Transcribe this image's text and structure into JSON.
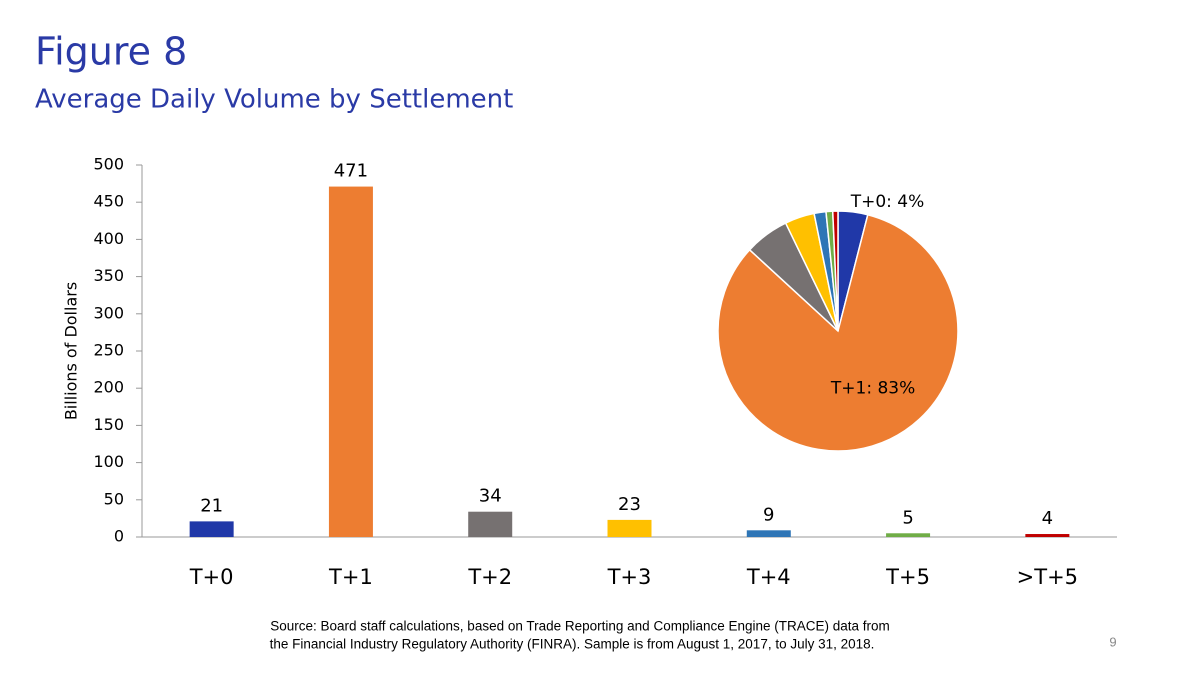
{
  "chart_data": [
    {
      "type": "bar",
      "title": "Figure 8",
      "subtitle": "Average Daily Volume by Settlement",
      "y_label": "Billions of Dollars",
      "categories": [
        "T+0",
        "T+1",
        "T+2",
        "T+3",
        "T+4",
        "T+5",
        ">T+5"
      ],
      "values": [
        21,
        471,
        34,
        23,
        9,
        5,
        4
      ],
      "colors": [
        "#2038a8",
        "#ed7d31",
        "#767171",
        "#ffc000",
        "#2e75b6",
        "#70ad47",
        "#c00000"
      ],
      "ylim": [
        0,
        500
      ],
      "yticks": [
        0,
        50,
        100,
        150,
        200,
        250,
        300,
        350,
        400,
        450,
        500
      ],
      "grid": false
    },
    {
      "type": "pie",
      "values": [
        4,
        83,
        6,
        4,
        1.6,
        0.9,
        0.7
      ],
      "value_labels": [
        "T+0: 4%",
        "T+1: 83%",
        null,
        null,
        null,
        null,
        null
      ],
      "colors": [
        "#2038a8",
        "#ed7d31",
        "#767171",
        "#ffc000",
        "#2e75b6",
        "#70ad47",
        "#c00000"
      ]
    }
  ],
  "source": [
    "Source: Board staff calculations, based on Trade Reporting and Compliance Engine (TRACE) data from",
    "the Financial Industry Regulatory Authority (FINRA). Sample is from August 1, 2017, to July 31, 2018."
  ],
  "page_number": "9"
}
